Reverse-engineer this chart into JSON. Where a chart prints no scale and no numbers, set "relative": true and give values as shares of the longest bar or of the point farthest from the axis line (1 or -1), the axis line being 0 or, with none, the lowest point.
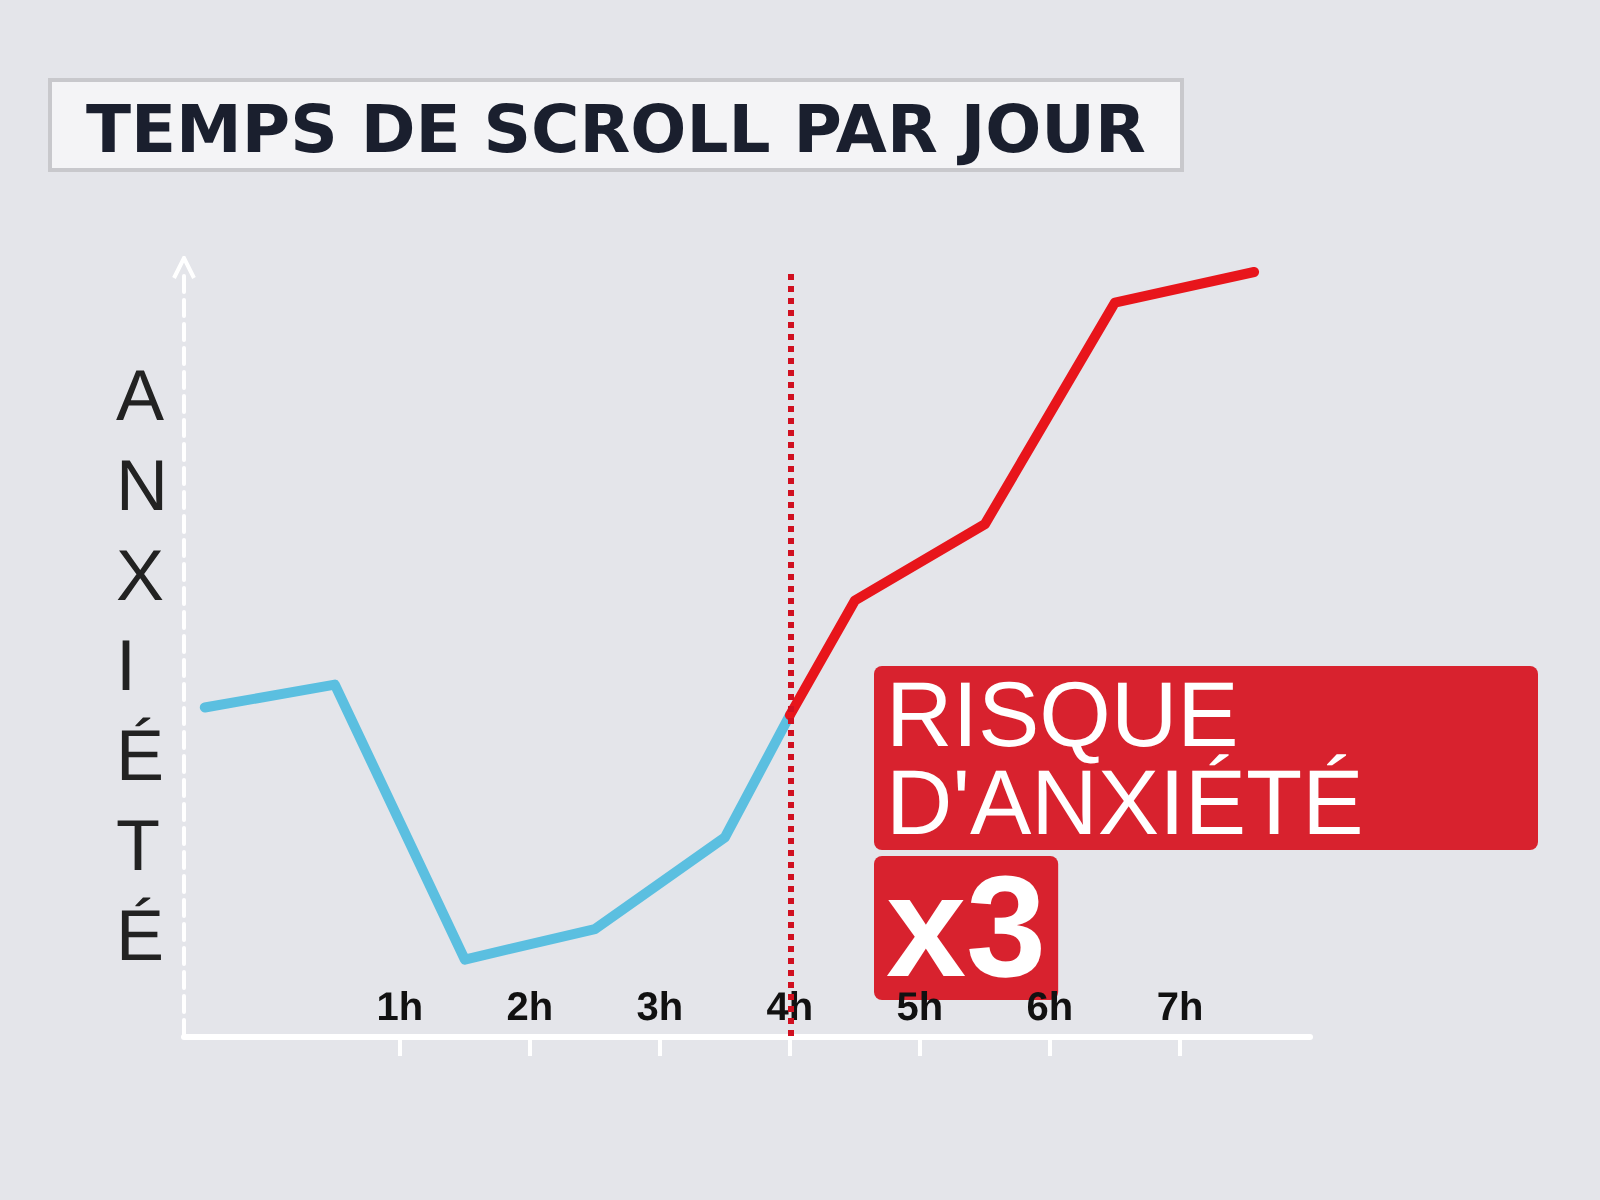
{
  "chart_data": {
    "type": "line",
    "title": "TEMPS DE SCROLL PAR JOUR",
    "ylabel": "ANXIÉTÉ",
    "relative": true,
    "xlim": [
      -0.66,
      8
    ],
    "xticks": [
      {
        "value": 1,
        "label": "1h"
      },
      {
        "value": 2,
        "label": "2h"
      },
      {
        "value": 3,
        "label": "3h"
      },
      {
        "value": 4,
        "label": "4h"
      },
      {
        "value": 5,
        "label": "5h"
      },
      {
        "value": 6,
        "label": "6h"
      },
      {
        "value": 7,
        "label": "7h"
      }
    ],
    "series": [
      {
        "color": "#5bbfe0",
        "x": [
          -0.5,
          0.5,
          1.5,
          2.5,
          3.5,
          4
        ],
        "values": [
          0.43,
          0.46,
          0.1,
          0.14,
          0.26,
          0.42
        ]
      },
      {
        "color": "#e8151b",
        "x": [
          4,
          4.5,
          5.5,
          6.5,
          7.57
        ],
        "values": [
          0.42,
          0.57,
          0.67,
          0.96,
          1
        ]
      }
    ],
    "ref_lines": [
      {
        "axis": "x",
        "value": 4,
        "color": "#d01020",
        "line_style": "dotted"
      }
    ],
    "annotations": [
      "RISQUE D'ANXIÉTÉ",
      "x3"
    ],
    "marker": "none",
    "line_style": "solid",
    "grid": false
  }
}
